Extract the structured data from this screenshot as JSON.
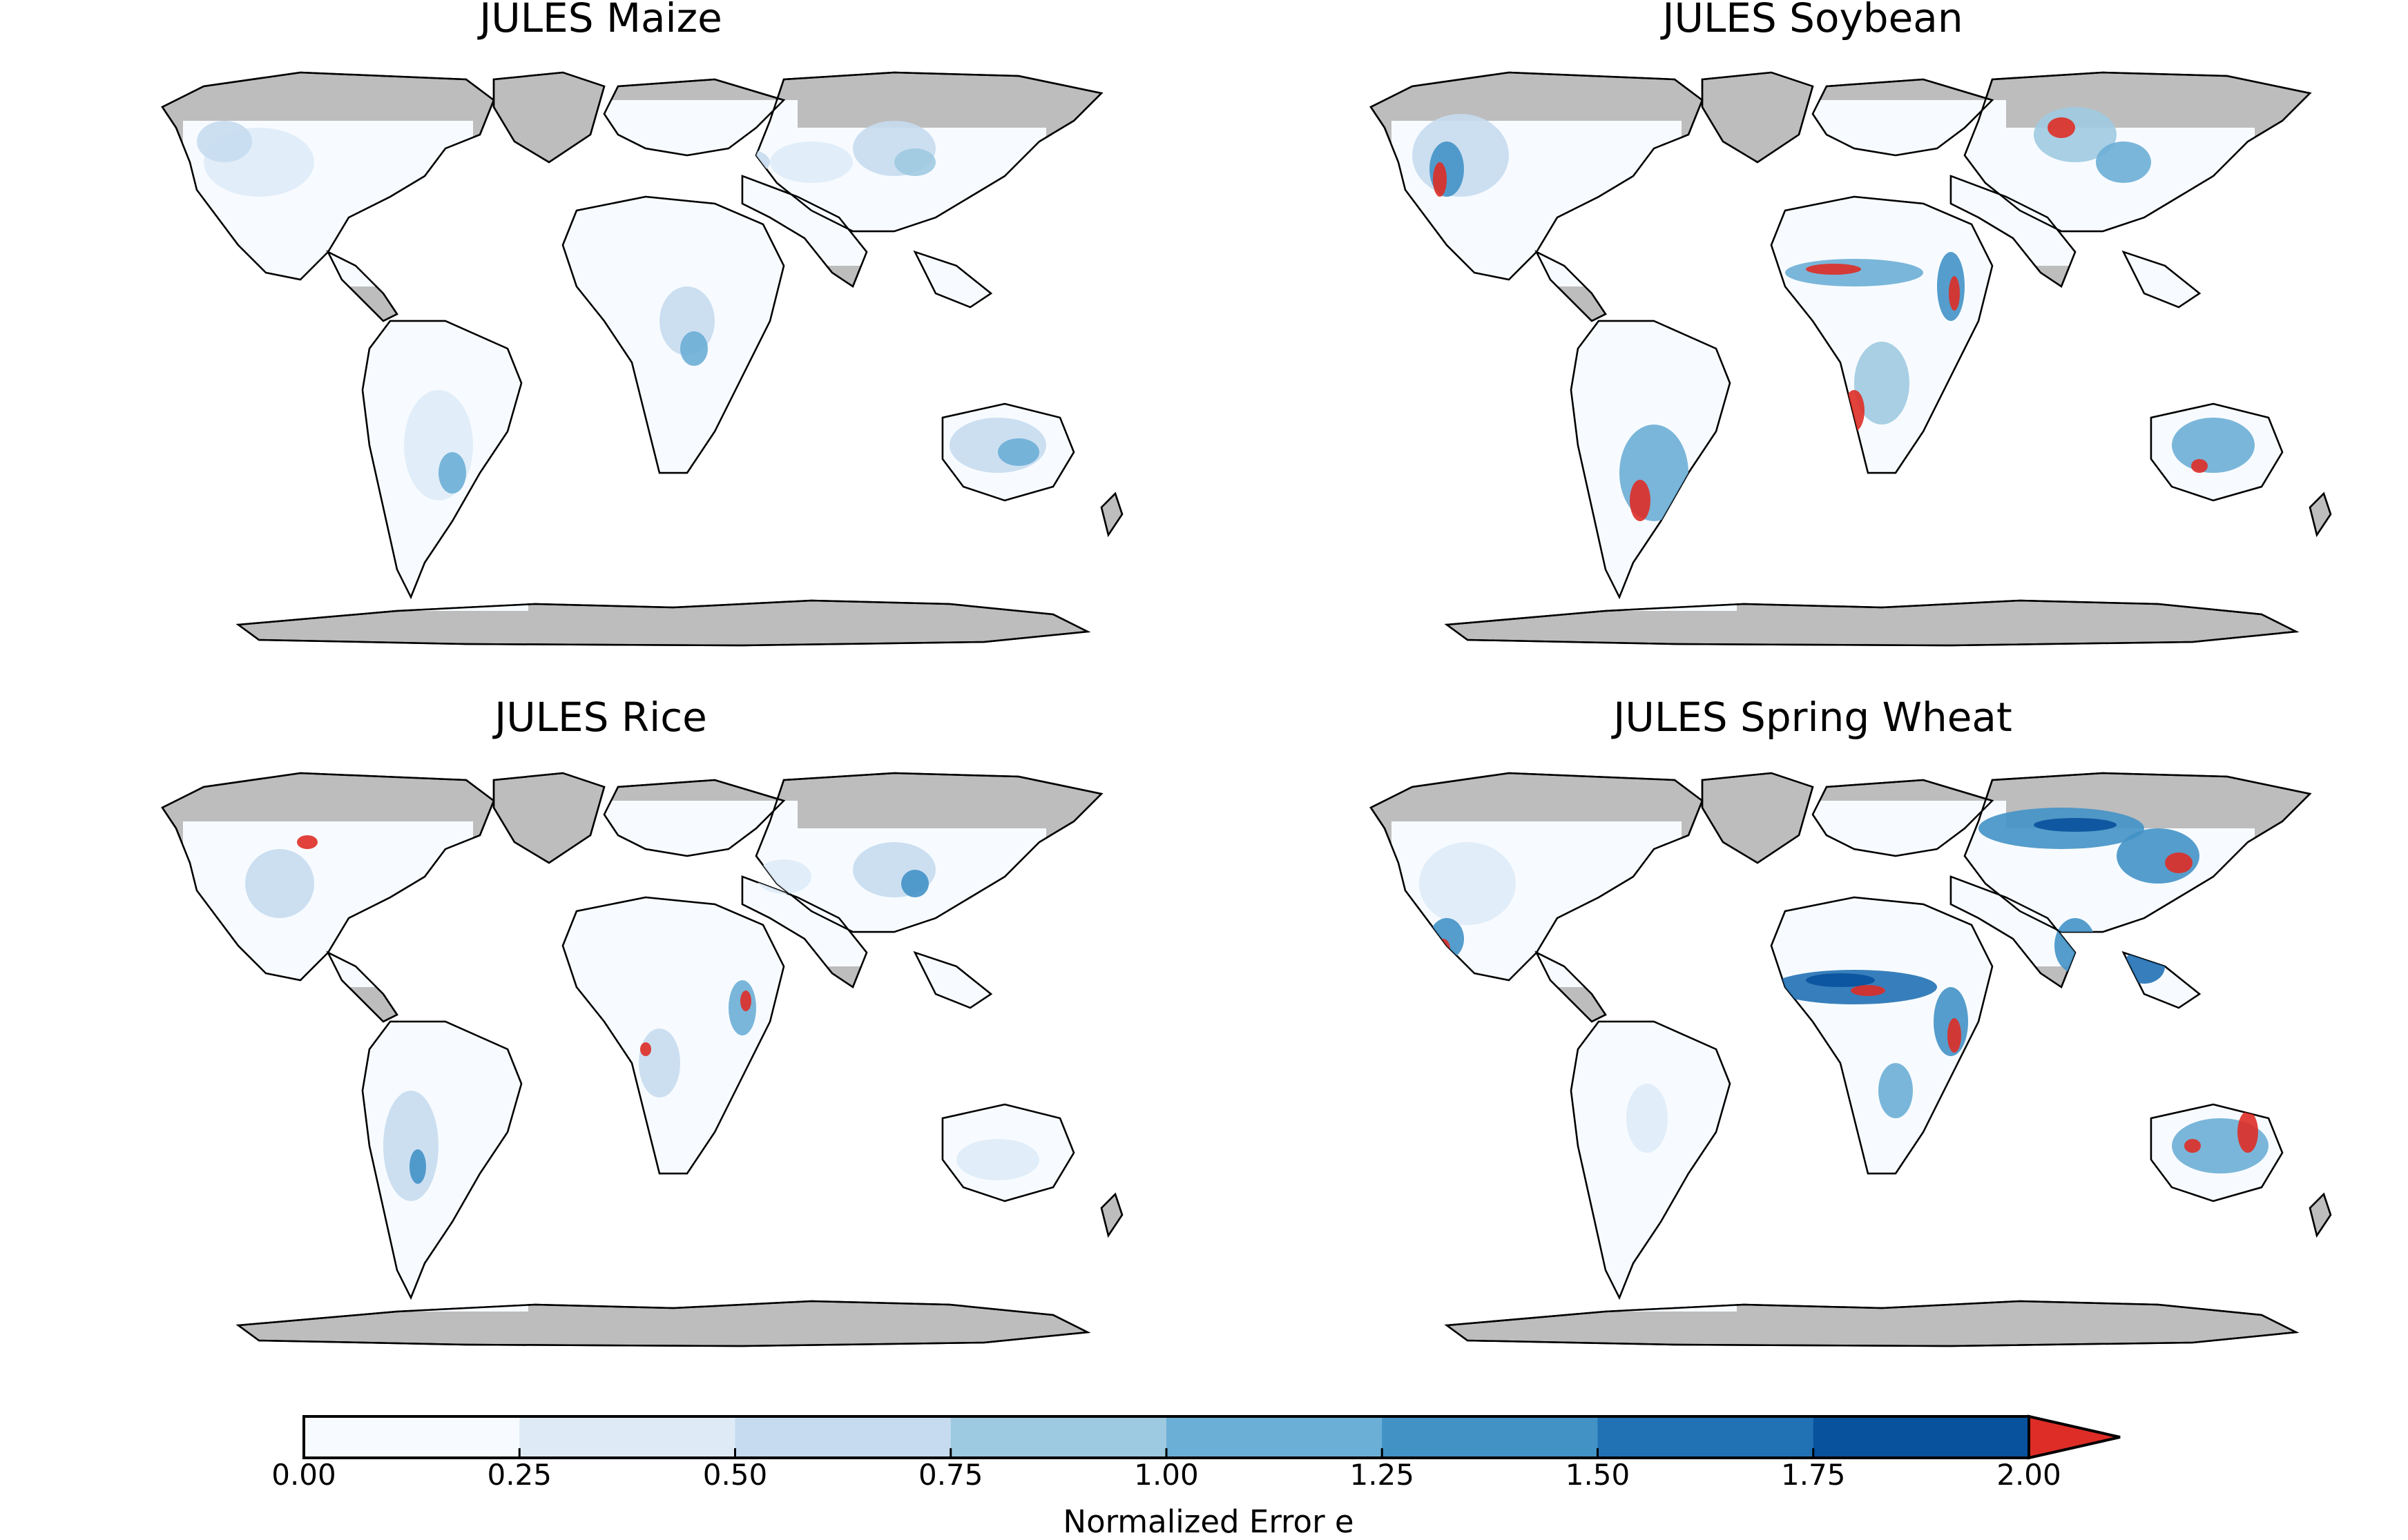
{
  "figure": {
    "panels": [
      {
        "title": "JULES Maize"
      },
      {
        "title": "JULES Soybean"
      },
      {
        "title": "JULES Rice"
      },
      {
        "title": "JULES Spring Wheat"
      }
    ],
    "colorbar": {
      "label": "Normalized Error e",
      "ticks": [
        "0.00",
        "0.25",
        "0.50",
        "0.75",
        "1.00",
        "1.25",
        "1.50",
        "1.75",
        "2.00"
      ],
      "colors": [
        "#f7fbff",
        "#deebf7",
        "#c6dbef",
        "#9ecae1",
        "#6baed6",
        "#4292c6",
        "#2171b5",
        "#08519c"
      ],
      "extend_color": "#de2d26",
      "extend": "max"
    },
    "colors": {
      "no_data_land": "#bdbdbd",
      "coastline": "#000000",
      "ocean": "#ffffff"
    }
  }
}
